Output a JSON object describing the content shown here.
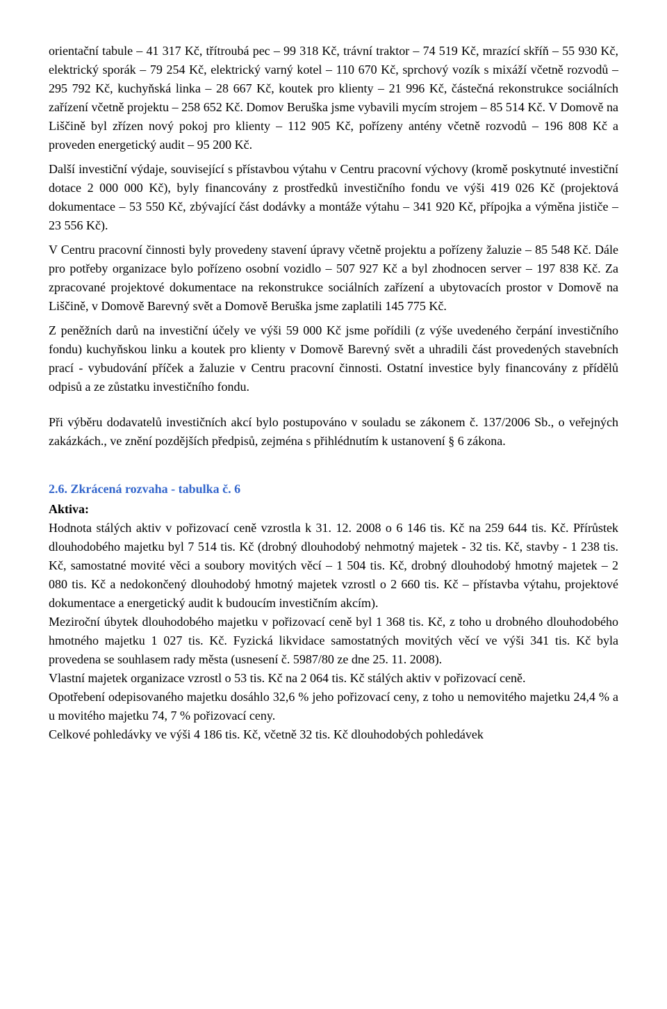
{
  "para1": "orientační tabule – 41 317 Kč, třítroubá pec – 99 318 Kč, trávní traktor – 74 519 Kč, mrazící skříň – 55 930 Kč, elektrický sporák – 79 254 Kč, elektrický varný kotel – 110 670 Kč, sprchový vozík s mixáží včetně rozvodů – 295 792 Kč, kuchyňská linka – 28 667 Kč, koutek pro klienty – 21 996 Kč, částečná rekonstrukce sociálních zařízení včetně projektu – 258 652 Kč. Domov Beruška jsme vybavili mycím strojem – 85 514 Kč.             V Domově na Liščině byl zřízen nový pokoj pro klienty – 112 905 Kč, pořízeny antény včetně rozvodů – 196 808 Kč a proveden energetický audit – 95 200 Kč.",
  "para2": "Další investiční výdaje, související s přístavbou výtahu v Centru pracovní výchovy (kromě poskytnuté investiční dotace 2 000 000 Kč), byly financovány z prostředků investičního fondu ve výši  419 026 Kč (projektová dokumentace – 53 550 Kč, zbývající část dodávky a montáže výtahu – 341 920 Kč, přípojka a výměna jističe – 23 556 Kč).",
  "para3": "V Centru pracovní činnosti byly provedeny stavení úpravy včetně projektu a pořízeny žaluzie – 85 548 Kč. Dále pro potřeby organizace bylo pořízeno osobní vozidlo – 507 927 Kč a byl zhodnocen server – 197 838 Kč. Za zpracované projektové dokumentace na rekonstrukce sociálních zařízení a ubytovacích prostor v Domově na Liščině, v Domově Barevný svět a Domově Beruška jsme zaplatili 145 775 Kč.",
  "para4": "Z peněžních darů na investiční účely ve výši 59 000 Kč jsme pořídili (z výše uvedeného čerpání investičního fondu) kuchyňskou linku a koutek pro klienty v Domově Barevný svět a uhradili část provedených stavebních prací - vybudování příček a žaluzie v Centru pracovní činnosti. Ostatní investice byly financovány z přídělů odpisů a ze zůstatku investičního fondu.",
  "para5": "Při výběru dodavatelů investičních akcí bylo postupováno v souladu se zákonem č. 137/2006 Sb., o veřejných zakázkách., ve znění pozdějších předpisů, zejména s přihlédnutím k ustanovení § 6 zákona.",
  "heading": "2.6. Zkrácená rozvaha  - tabulka č. 6",
  "aktiva_label": "Aktiva:",
  "para6": "Hodnota stálých aktiv v pořizovací ceně vzrostla k 31. 12. 2008 o 6 146  tis. Kč na 259 644 tis. Kč. Přírůstek dlouhodobého majetku byl 7 514 tis. Kč (drobný dlouhodobý nehmotný majetek - 32 tis. Kč, stavby - 1 238 tis. Kč, samostatné movité věci a soubory movitých věcí – 1 504 tis. Kč, drobný dlouhodobý hmotný majetek – 2 080 tis. Kč a nedokončený dlouhodobý hmotný majetek vzrostl o 2 660 tis. Kč – přístavba výtahu, projektové dokumentace a energetický audit k budoucím investičním akcím).",
  "para7": "Meziroční úbytek dlouhodobého majetku v pořizovací ceně byl 1 368 tis. Kč, z toho u drobného dlouhodobého hmotného majetku 1 027 tis. Kč. Fyzická likvidace samostatných movitých věcí ve výši 341 tis. Kč byla provedena se souhlasem rady města (usnesení č. 5987/80 ze dne 25. 11. 2008).",
  "para8": "Vlastní majetek organizace vzrostl o 53 tis. Kč na 2 064 tis. Kč stálých aktiv v pořizovací ceně.",
  "para9": "Opotřebení odepisovaného majetku dosáhlo 32,6 % jeho pořizovací ceny, z toho u nemovitého majetku 24,4 % a u movitého majetku 74, 7 % pořizovací ceny.",
  "para10": "Celkové pohledávky ve výši 4 186 tis. Kč, včetně 32 tis. Kč dlouhodobých pohledávek"
}
